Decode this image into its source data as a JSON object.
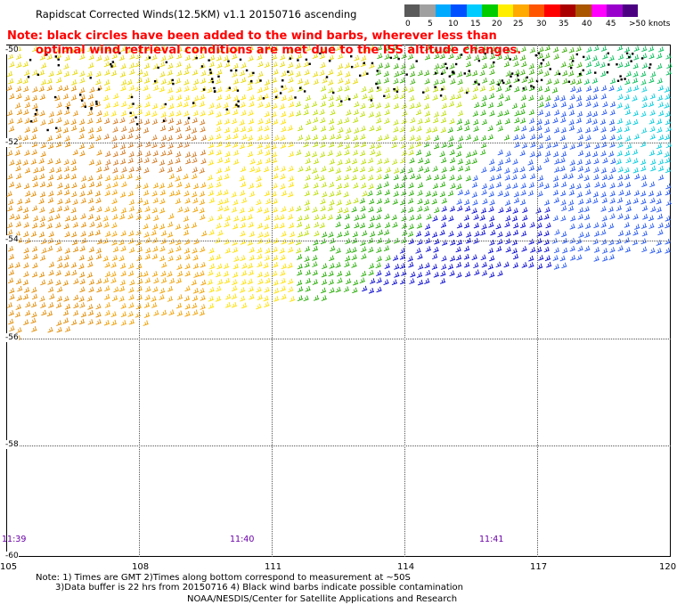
{
  "title": "Rapidscat Corrected Winds(12.5KM) v1.1 20150716 ascending",
  "note": {
    "line1": "Note: black circles have been added to the wind barbs, wherever less than",
    "line2": "optimal wind retrieval conditions are met due to the ISS altitude changes."
  },
  "colorbar": {
    "colors": [
      "#5a5a5a",
      "#a0a0a0",
      "#00aaff",
      "#0050ff",
      "#00ccff",
      "#00cc00",
      "#ffee00",
      "#ffaa00",
      "#ff5500",
      "#ff0000",
      "#aa0000",
      "#aa5500",
      "#ff00ff",
      "#9900cc",
      "#4b0082"
    ],
    "labels": [
      "0",
      "5",
      "10",
      "15",
      "20",
      "25",
      "30",
      "35",
      "40",
      "45",
      ">50 knots"
    ]
  },
  "latitudes": [
    "-50",
    "-52",
    "-54",
    "-56",
    "-58",
    "-60"
  ],
  "longitudes": [
    "105",
    "108",
    "111",
    "114",
    "117",
    "120"
  ],
  "times": [
    "11:39",
    "11:40",
    "11:41"
  ],
  "footer": {
    "line1": "Note: 1) Times are GMT 2)Times along bottom correspond to measurement at ~50S",
    "line2": "3)Data buffer is 22 hrs from 20150716 4) Black wind barbs indicate possible contamination",
    "line3": "NOAA/NESDIS/Center for Satellite Applications and Research"
  },
  "map": {
    "lon_range": [
      105,
      120
    ],
    "lat_range": [
      -50,
      -60
    ]
  }
}
